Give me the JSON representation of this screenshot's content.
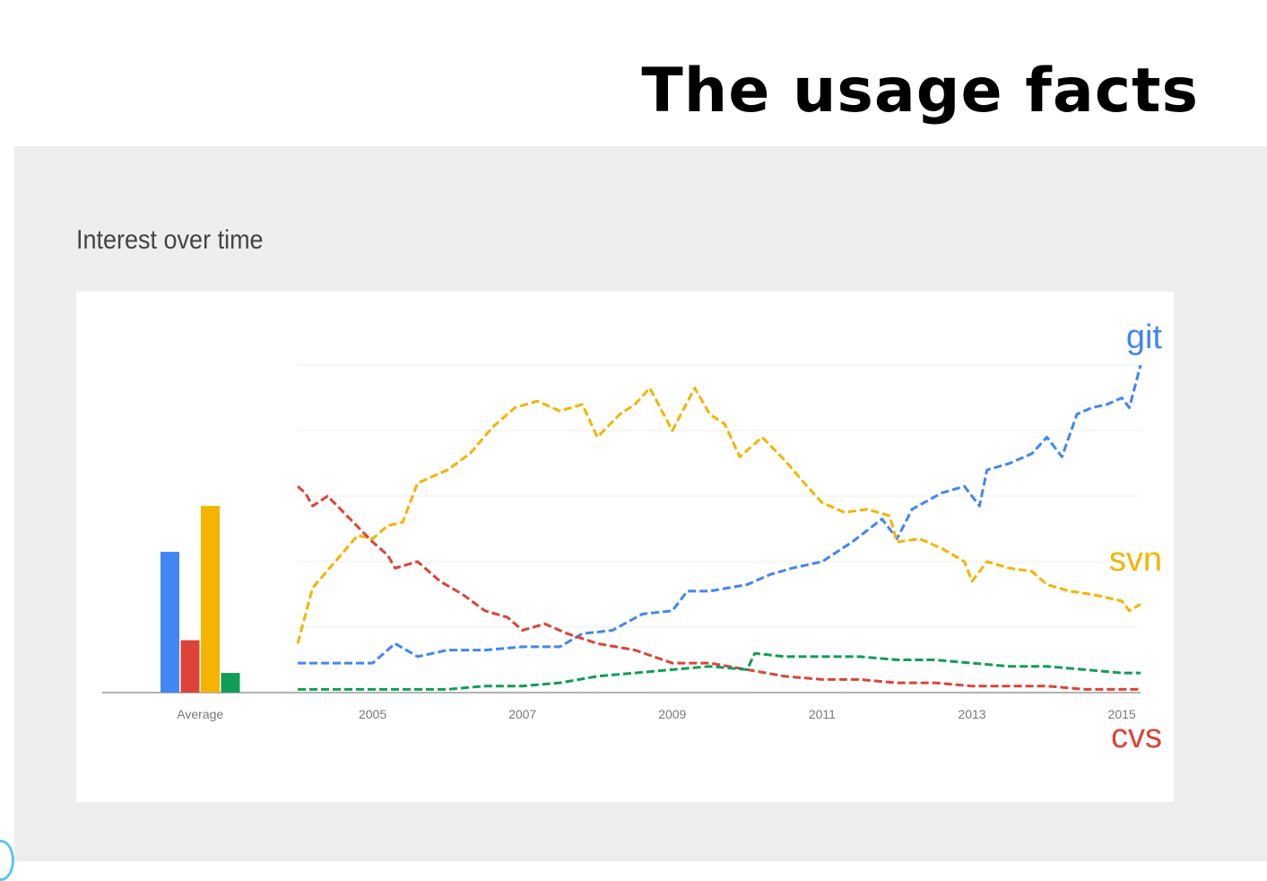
{
  "slide": {
    "title": "The usage facts"
  },
  "panel": {
    "heading": "Interest over time"
  },
  "chart_data": {
    "type": "line",
    "title": "Interest over time",
    "x_start": 2004.0,
    "x_end": 2015.25,
    "ylim": [
      0,
      100
    ],
    "grid": true,
    "x_ticks": [
      "2005",
      "2007",
      "2009",
      "2011",
      "2013",
      "2015"
    ],
    "average_label": "Average",
    "average_colors": {
      "git": "#4285f4",
      "cvs": "#db4437",
      "svn": "#f4b400",
      "other": "#0f9d58"
    },
    "average_bars": [
      {
        "key": "git",
        "value": 43
      },
      {
        "key": "cvs",
        "value": 16
      },
      {
        "key": "svn",
        "value": 57
      },
      {
        "key": "other",
        "value": 6
      }
    ],
    "series": [
      {
        "name": "git",
        "color": "#4285f4",
        "label_position": "top-right",
        "points": [
          [
            2004.0,
            9
          ],
          [
            2004.5,
            9
          ],
          [
            2005.0,
            9
          ],
          [
            2005.3,
            15
          ],
          [
            2005.6,
            11
          ],
          [
            2006.0,
            13
          ],
          [
            2006.5,
            13
          ],
          [
            2007.0,
            14
          ],
          [
            2007.5,
            14
          ],
          [
            2007.8,
            18
          ],
          [
            2008.2,
            19
          ],
          [
            2008.6,
            24
          ],
          [
            2009.0,
            25
          ],
          [
            2009.2,
            31
          ],
          [
            2009.5,
            31
          ],
          [
            2010.0,
            33
          ],
          [
            2010.3,
            36
          ],
          [
            2010.6,
            38
          ],
          [
            2011.0,
            40
          ],
          [
            2011.4,
            46
          ],
          [
            2011.8,
            53
          ],
          [
            2012.0,
            47
          ],
          [
            2012.2,
            56
          ],
          [
            2012.6,
            61
          ],
          [
            2012.9,
            63
          ],
          [
            2013.1,
            57
          ],
          [
            2013.2,
            68
          ],
          [
            2013.5,
            70
          ],
          [
            2013.8,
            73
          ],
          [
            2014.0,
            78
          ],
          [
            2014.2,
            72
          ],
          [
            2014.4,
            85
          ],
          [
            2014.6,
            87
          ],
          [
            2014.8,
            88
          ],
          [
            2015.0,
            90
          ],
          [
            2015.1,
            87
          ],
          [
            2015.25,
            100
          ]
        ]
      },
      {
        "name": "svn",
        "color": "#f4b400",
        "label_position": "right",
        "points": [
          [
            2004.0,
            15
          ],
          [
            2004.2,
            32
          ],
          [
            2004.5,
            40
          ],
          [
            2004.8,
            48
          ],
          [
            2005.0,
            47
          ],
          [
            2005.2,
            51
          ],
          [
            2005.4,
            52
          ],
          [
            2005.6,
            64
          ],
          [
            2006.0,
            68
          ],
          [
            2006.3,
            73
          ],
          [
            2006.6,
            81
          ],
          [
            2006.9,
            87
          ],
          [
            2007.2,
            89
          ],
          [
            2007.5,
            86
          ],
          [
            2007.8,
            88
          ],
          [
            2008.0,
            78
          ],
          [
            2008.3,
            85
          ],
          [
            2008.5,
            88
          ],
          [
            2008.7,
            93
          ],
          [
            2009.0,
            80
          ],
          [
            2009.3,
            93
          ],
          [
            2009.5,
            85
          ],
          [
            2009.7,
            82
          ],
          [
            2009.9,
            72
          ],
          [
            2010.2,
            78
          ],
          [
            2010.5,
            71
          ],
          [
            2010.8,
            63
          ],
          [
            2011.0,
            58
          ],
          [
            2011.3,
            55
          ],
          [
            2011.6,
            56
          ],
          [
            2011.9,
            54
          ],
          [
            2012.0,
            46
          ],
          [
            2012.3,
            47
          ],
          [
            2012.6,
            44
          ],
          [
            2012.9,
            40
          ],
          [
            2013.0,
            34
          ],
          [
            2013.2,
            40
          ],
          [
            2013.5,
            38
          ],
          [
            2013.8,
            37
          ],
          [
            2014.0,
            33
          ],
          [
            2014.3,
            31
          ],
          [
            2014.6,
            30
          ],
          [
            2014.8,
            29
          ],
          [
            2015.0,
            28
          ],
          [
            2015.1,
            25
          ],
          [
            2015.25,
            27
          ]
        ]
      },
      {
        "name": "cvs",
        "color": "#db4437",
        "label_position": "bottom-right",
        "points": [
          [
            2004.0,
            63
          ],
          [
            2004.1,
            61
          ],
          [
            2004.2,
            57
          ],
          [
            2004.4,
            60
          ],
          [
            2004.7,
            53
          ],
          [
            2005.0,
            46
          ],
          [
            2005.2,
            42
          ],
          [
            2005.3,
            38
          ],
          [
            2005.6,
            40
          ],
          [
            2005.9,
            34
          ],
          [
            2006.2,
            30
          ],
          [
            2006.5,
            25
          ],
          [
            2006.8,
            23
          ],
          [
            2007.0,
            19
          ],
          [
            2007.3,
            21
          ],
          [
            2007.6,
            18
          ],
          [
            2008.0,
            15
          ],
          [
            2008.5,
            13
          ],
          [
            2009.0,
            9
          ],
          [
            2009.5,
            9
          ],
          [
            2010.0,
            7
          ],
          [
            2010.5,
            5
          ],
          [
            2011.0,
            4
          ],
          [
            2011.5,
            4
          ],
          [
            2012.0,
            3
          ],
          [
            2012.5,
            3
          ],
          [
            2013.0,
            2
          ],
          [
            2013.5,
            2
          ],
          [
            2014.0,
            2
          ],
          [
            2014.5,
            1
          ],
          [
            2015.0,
            1
          ],
          [
            2015.25,
            1
          ]
        ]
      },
      {
        "name": "",
        "color": "#0f9d58",
        "label_position": "",
        "points": [
          [
            2004.0,
            1
          ],
          [
            2004.5,
            1
          ],
          [
            2005.0,
            1
          ],
          [
            2005.5,
            1
          ],
          [
            2006.0,
            1
          ],
          [
            2006.5,
            2
          ],
          [
            2007.0,
            2
          ],
          [
            2007.5,
            3
          ],
          [
            2008.0,
            5
          ],
          [
            2008.5,
            6
          ],
          [
            2009.0,
            7
          ],
          [
            2009.5,
            8
          ],
          [
            2010.0,
            7
          ],
          [
            2010.1,
            12
          ],
          [
            2010.5,
            11
          ],
          [
            2011.0,
            11
          ],
          [
            2011.5,
            11
          ],
          [
            2012.0,
            10
          ],
          [
            2012.5,
            10
          ],
          [
            2013.0,
            9
          ],
          [
            2013.5,
            8
          ],
          [
            2014.0,
            8
          ],
          [
            2014.5,
            7
          ],
          [
            2015.0,
            6
          ],
          [
            2015.25,
            6
          ]
        ]
      }
    ]
  }
}
